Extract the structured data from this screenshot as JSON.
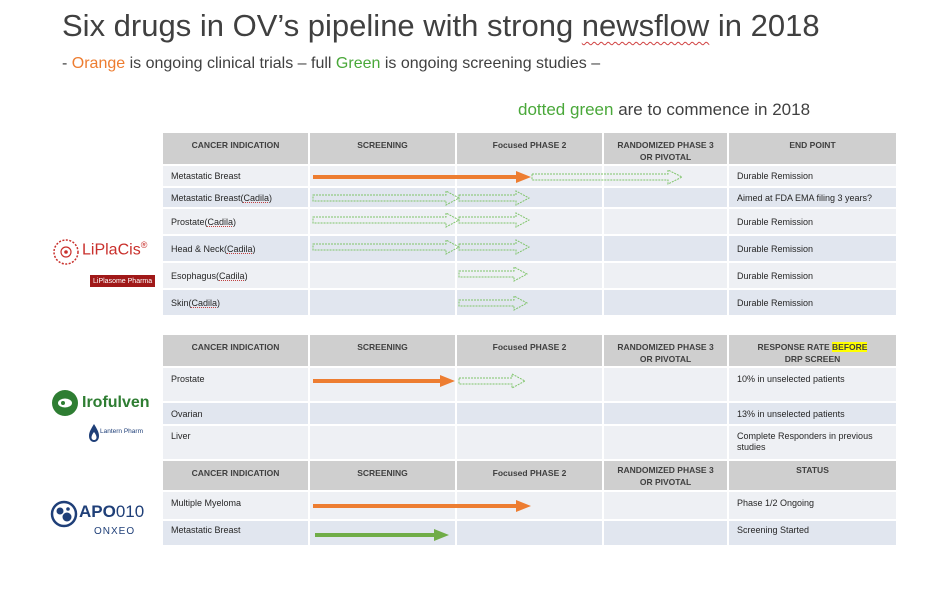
{
  "title": {
    "before": "Six drugs in OV’s pipeline with strong ",
    "underlined": "newsflow",
    "after": " in 2018"
  },
  "subtitle": {
    "prefix": "- ",
    "orange": "Orange",
    "mid1": " is ongoing clinical trials – full ",
    "green": "Green",
    "mid2": " is ongoing screening studies –",
    "line2_green": "dotted green",
    "line2_rest": " are to commence in 2018"
  },
  "colors": {
    "orange": "#ed7d31",
    "green": "#70ad47",
    "dotted_green": "#7fc46a"
  },
  "liplacis": {
    "logo_text": "LiPlaCis",
    "registered": "®",
    "partner_logo": "LiPlasome Pharma",
    "headers": [
      "CANCER INDICATION",
      "SCREENING",
      "Focused PHASE 2",
      "RANDOMIZED PHASE 3 OR PIVOTAL",
      "END POINT"
    ],
    "rows": [
      {
        "indication": "Metastatic Breast",
        "partner": "",
        "endpoint": "Durable Remission"
      },
      {
        "indication": "Metastatic Breast ",
        "partner": "Cadila",
        "endpoint": "Aimed at FDA EMA filing 3 years?"
      },
      {
        "indication": "Prostate ",
        "partner": "Cadila",
        "endpoint": "Durable Remission"
      },
      {
        "indication": "Head & Neck ",
        "partner": "Cadila",
        "endpoint": "Durable Remission"
      },
      {
        "indication": "Esophagus ",
        "partner": "Cadila",
        "endpoint": "Durable Remission"
      },
      {
        "indication": "Skin ",
        "partner": "Cadila",
        "endpoint": "Durable Remission"
      }
    ]
  },
  "irofulven": {
    "logo_text": "Irofulven",
    "partner_logo": "Lantern Pharm",
    "headers": [
      "CANCER INDICATION",
      "SCREENING",
      "Focused PHASE 2",
      "RANDOMIZED PHASE 3 OR PIVOTAL"
    ],
    "response_header_before": "RESPONSE RATE ",
    "response_header_highlight": "BEFORE",
    "response_header_after": "DRP SCREEN",
    "rows": [
      {
        "indication": "Prostate",
        "response": "10% in unselected patients"
      },
      {
        "indication": "Ovarian",
        "response": "13% in unselected patients"
      },
      {
        "indication": "Liver",
        "response": "Complete Responders in previous studies"
      }
    ]
  },
  "apo010": {
    "logo_bold": "APO",
    "logo_light": "010",
    "partner_logo": "ONXEO",
    "headers": [
      "CANCER INDICATION",
      "SCREENING",
      "Focused PHASE 2",
      "RANDOMIZED PHASE 3 OR PIVOTAL",
      "STATUS"
    ],
    "rows": [
      {
        "indication": "Multiple Myeloma",
        "status": "Phase 1/2  Ongoing"
      },
      {
        "indication": "Metastatic Breast",
        "status": "Screening Started"
      }
    ]
  }
}
